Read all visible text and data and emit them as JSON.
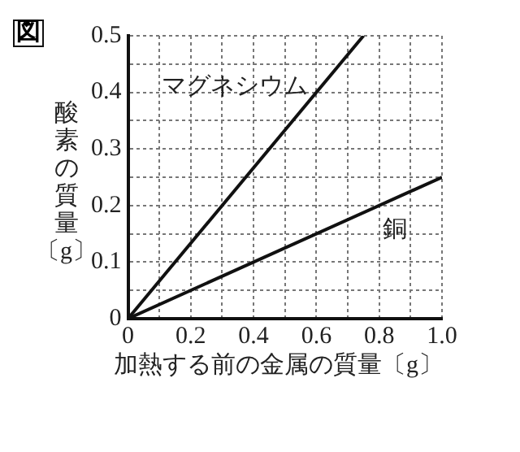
{
  "chart_data": {
    "type": "line",
    "title": "図",
    "xlabel": "加熱する前の金属の質量〔g〕",
    "ylabel": "酸素の質量〔g〕",
    "series": [
      {
        "name": "マグネシウム",
        "color": "#111111",
        "x": [
          0,
          0.75
        ],
        "values": [
          0,
          0.5
        ]
      },
      {
        "name": "銅",
        "color": "#111111",
        "x": [
          0,
          1
        ],
        "values": [
          0,
          0.25
        ]
      }
    ],
    "xlim": [
      0,
      1
    ],
    "ylim": [
      0,
      0.5
    ],
    "xticks": [
      0,
      {
        "value": 0.1,
        "label": null
      },
      0.2,
      {
        "value": 0.3,
        "label": null
      },
      0.4,
      {
        "value": 0.5,
        "label": null
      },
      0.6,
      {
        "value": 0.7,
        "label": null
      },
      0.8,
      {
        "value": 0.9,
        "label": null
      },
      {
        "value": 1,
        "label": "1.0"
      }
    ],
    "yticks": [
      0,
      {
        "value": 0.05,
        "label": null
      },
      0.1,
      {
        "value": 0.15,
        "label": null
      },
      0.2,
      {
        "value": 0.25,
        "label": null
      },
      0.3,
      {
        "value": 0.35,
        "label": null
      },
      0.4,
      {
        "value": 0.45,
        "label": null
      },
      0.5
    ],
    "grid": true,
    "marker": "none",
    "line_style": "solid",
    "legend": false
  }
}
